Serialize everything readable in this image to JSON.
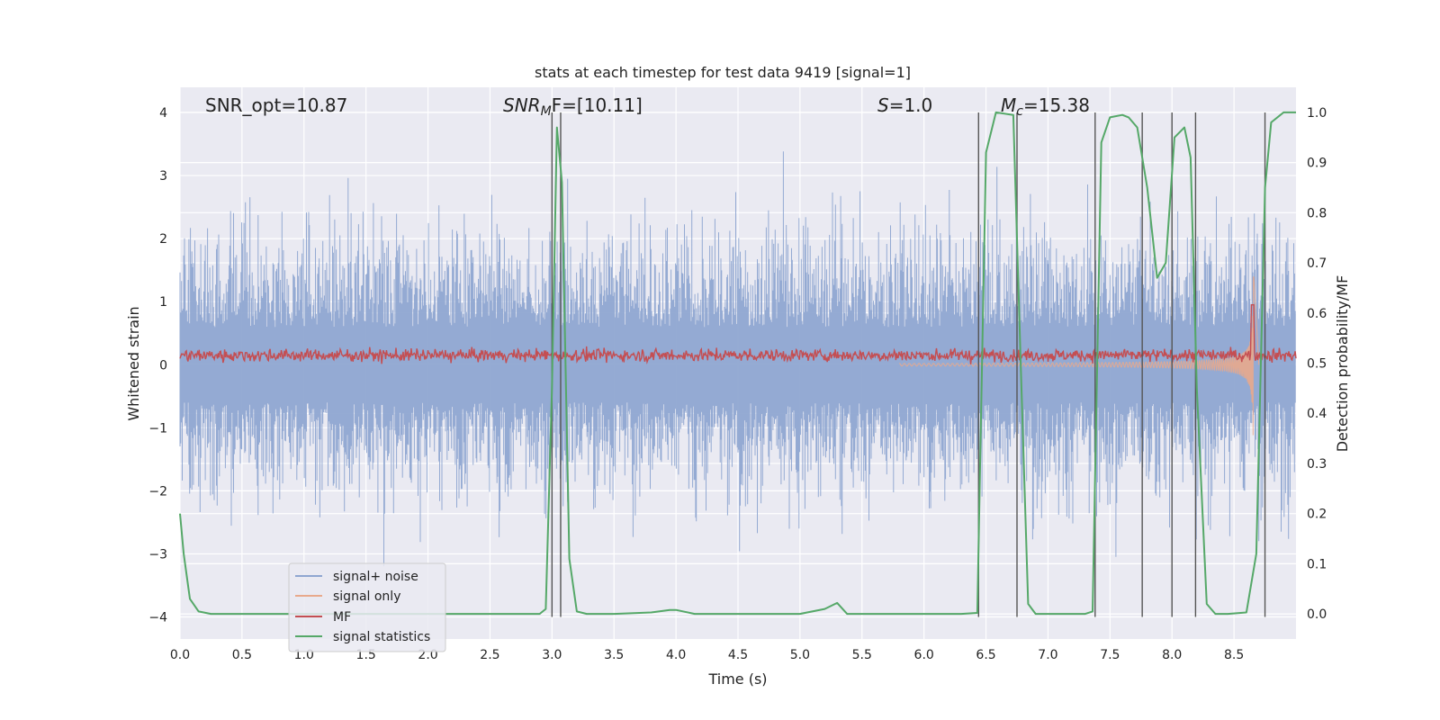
{
  "chart_data": {
    "type": "line",
    "title": "stats at each timestep for test data 9419 [signal=1]",
    "xlabel": "Time (s)",
    "ylabel_left": "Whitened strain",
    "ylabel_right": "Detection probability/MF",
    "xlim": [
      0.0,
      9.0
    ],
    "ylim_left": [
      -4.35,
      4.4
    ],
    "ylim_right": [
      -0.05,
      1.05
    ],
    "xticks": [
      "0.0",
      "0.5",
      "1.0",
      "1.5",
      "2.0",
      "2.5",
      "3.0",
      "3.5",
      "4.0",
      "4.5",
      "5.0",
      "5.5",
      "6.0",
      "6.5",
      "7.0",
      "7.5",
      "8.0",
      "8.5"
    ],
    "yticks_left": [
      "4",
      "3",
      "2",
      "1",
      "0",
      "−1",
      "−2",
      "−3",
      "−4"
    ],
    "yticks_right": [
      "1.0",
      "0.9",
      "0.8",
      "0.7",
      "0.6",
      "0.5",
      "0.4",
      "0.3",
      "0.2",
      "0.1",
      "0.0"
    ],
    "annotations": {
      "snr_opt": "SNR_opt=10.87",
      "snr_mf_sym": "SNR",
      "snr_mf_sub": "M",
      "snr_mf_rest": "F=[10.11]",
      "s_sym": "S",
      "s_rest": "=1.0",
      "mc_sym": "M",
      "mc_sub": "c",
      "mc_rest": "=15.38"
    },
    "vertical_lines_x": [
      3.0,
      3.07,
      6.44,
      6.75,
      7.38,
      7.76,
      8.0,
      8.19,
      8.75
    ],
    "legend": {
      "position": "lower-left",
      "entries": [
        {
          "label": "signal+ noise",
          "color": "#8fa6d1"
        },
        {
          "label": "signal only",
          "color": "#e8a98c"
        },
        {
          "label": "MF",
          "color": "#c44e52"
        },
        {
          "label": "signal statistics",
          "color": "#55a868"
        }
      ]
    },
    "series": [
      {
        "name": "signal statistics",
        "axis": "right",
        "color": "#55a868",
        "x": [
          0.0,
          0.03,
          0.08,
          0.15,
          0.25,
          0.5,
          1.0,
          1.5,
          2.0,
          2.5,
          2.9,
          2.95,
          3.0,
          3.04,
          3.08,
          3.14,
          3.2,
          3.28,
          3.5,
          3.8,
          3.95,
          4.0,
          4.15,
          4.5,
          5.0,
          5.2,
          5.3,
          5.38,
          5.5,
          6.0,
          6.3,
          6.43,
          6.5,
          6.58,
          6.72,
          6.78,
          6.84,
          6.9,
          7.0,
          7.3,
          7.36,
          7.43,
          7.5,
          7.6,
          7.65,
          7.72,
          7.8,
          7.88,
          7.95,
          8.02,
          8.1,
          8.15,
          8.2,
          8.28,
          8.35,
          8.45,
          8.6,
          8.68,
          8.75,
          8.8,
          8.9,
          9.0
        ],
        "y": [
          0.2,
          0.12,
          0.03,
          0.005,
          0.0,
          0.0,
          0.0,
          0.0,
          0.0,
          0.0,
          0.0,
          0.01,
          0.45,
          0.97,
          0.86,
          0.11,
          0.005,
          0.0,
          0.0,
          0.003,
          0.008,
          0.008,
          0.0,
          0.0,
          0.0,
          0.01,
          0.022,
          0.0,
          0.0,
          0.0,
          0.0,
          0.002,
          0.92,
          1.0,
          0.995,
          0.5,
          0.02,
          0.0,
          0.0,
          0.0,
          0.005,
          0.94,
          0.99,
          0.995,
          0.99,
          0.97,
          0.85,
          0.67,
          0.7,
          0.95,
          0.97,
          0.91,
          0.45,
          0.02,
          0.0,
          0.0,
          0.003,
          0.12,
          0.85,
          0.98,
          1.0,
          1.0
        ]
      }
    ]
  }
}
